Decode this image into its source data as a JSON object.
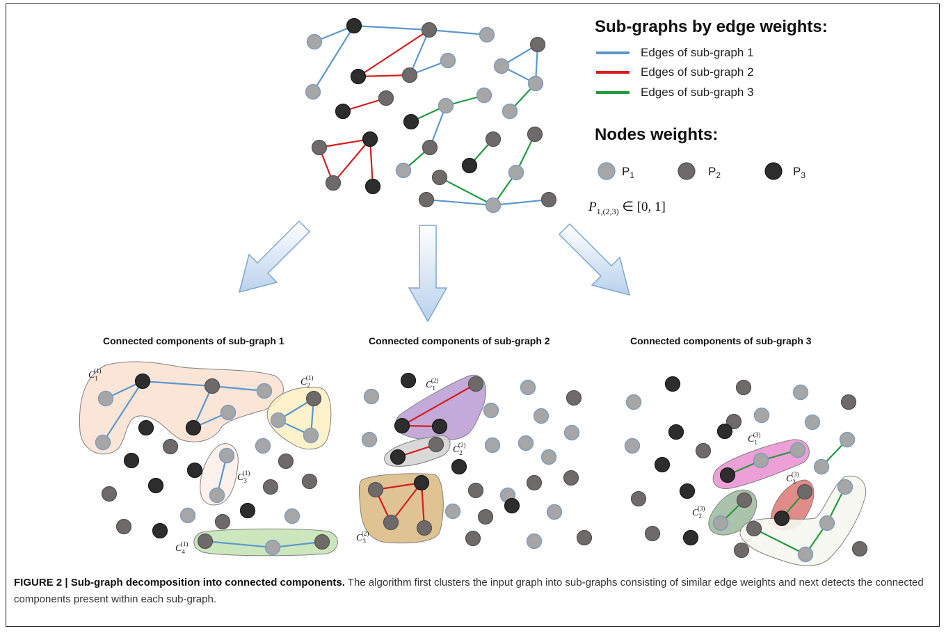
{
  "legend": {
    "edges_title": "Sub-graphs by edge weights:",
    "edge_items": [
      {
        "label": "Edges of sub-graph 1",
        "color": "#5b97cf"
      },
      {
        "label": "Edges of sub-graph 2",
        "color": "#d61c1c"
      },
      {
        "label": "Edges of sub-graph 3",
        "color": "#1f9a3c"
      }
    ],
    "nodes_title": "Nodes weights:",
    "node_items": [
      {
        "label": "P",
        "sub": "1",
        "color": "#a6a6a6"
      },
      {
        "label": "P",
        "sub": "2",
        "color": "#6f6a6a"
      },
      {
        "label": "P",
        "sub": "3",
        "color": "#2d2d2d"
      }
    ],
    "formula": {
      "var": "P",
      "sub": "1,(2,3)",
      "rest": " ∈ [0, 1]"
    }
  },
  "panels": [
    {
      "title": "Connected components of sub-graph 1",
      "components": [
        {
          "label": "C",
          "sub": "1",
          "sup": "(1)"
        },
        {
          "label": "C",
          "sub": "2",
          "sup": "(1)"
        },
        {
          "label": "C",
          "sub": "3",
          "sup": "(1)"
        },
        {
          "label": "C",
          "sub": "4",
          "sup": "(1)"
        }
      ]
    },
    {
      "title": "Connected components of sub-graph 2",
      "components": [
        {
          "label": "C",
          "sub": "1",
          "sup": "(2)"
        },
        {
          "label": "C",
          "sub": "2",
          "sup": "(2)"
        },
        {
          "label": "C",
          "sub": "3",
          "sup": "(2)"
        }
      ]
    },
    {
      "title": "Connected components of sub-graph 3",
      "components": [
        {
          "label": "C",
          "sub": "1",
          "sup": "(3)"
        },
        {
          "label": "C",
          "sub": "2",
          "sup": "(3)"
        },
        {
          "label": "C",
          "sub": "3",
          "sup": "(3)"
        }
      ]
    }
  ],
  "caption": {
    "lead": "FIGURE 2 | Sub-graph decomposition into connected components.",
    "text": " The algorithm first clusters the input graph into sub-graphs consisting of similar edge weights and next detects the connected components present within each sub-graph."
  }
}
